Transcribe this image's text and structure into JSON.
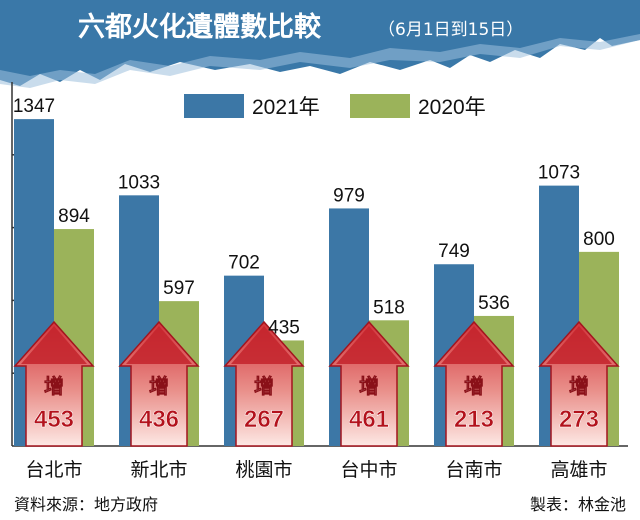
{
  "header": {
    "title": "六都火化遺體數比較",
    "subtitle": "（6月1日到15日）"
  },
  "chart_data": {
    "type": "bar",
    "title": "六都火化遺體數比較",
    "subtitle": "（6月1日到15日）",
    "categories": [
      "台北市",
      "新北市",
      "桃園市",
      "台中市",
      "台南市",
      "高雄市"
    ],
    "series": [
      {
        "name": "2021年",
        "values": [
          1347,
          1033,
          702,
          979,
          749,
          1073
        ],
        "color": "#3c77a6"
      },
      {
        "name": "2020年",
        "values": [
          894,
          597,
          435,
          518,
          536,
          800
        ],
        "color": "#9bb35a"
      }
    ],
    "increase_label": "增",
    "increase_values": [
      453,
      436,
      267,
      461,
      213,
      273
    ],
    "ylim": [
      0,
      1500
    ],
    "grid": false,
    "legend_position": "top-center"
  },
  "footer": {
    "source": "資料來源：地方政府",
    "credit": "製表：林金池"
  },
  "colors": {
    "header_bg": "#3a78a8",
    "bar_2021": "#3c77a6",
    "bar_2020": "#9bb35a",
    "arrow": "#b5202e",
    "arrow_light": "#f2c4c0"
  }
}
